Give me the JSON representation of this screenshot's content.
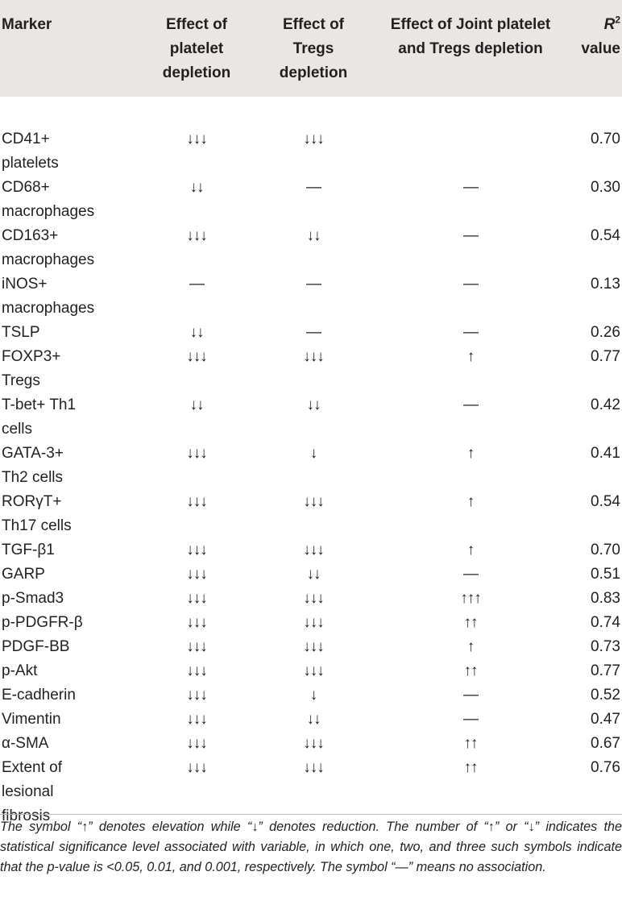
{
  "headers": {
    "marker": "Marker",
    "platelet": [
      "Effect of",
      "platelet",
      "depletion"
    ],
    "tregs": [
      "Effect of",
      "Tregs",
      "depletion"
    ],
    "joint": [
      "Effect of Joint platelet",
      "and Tregs depletion"
    ],
    "r2_main": "R",
    "r2_sup": "2",
    "r2_value": "value"
  },
  "rows": [
    {
      "marker": [
        "CD41+",
        "platelets"
      ],
      "platelet": "↓↓↓",
      "tregs": "↓↓↓",
      "joint": "",
      "r2": "0.70"
    },
    {
      "marker": [
        "CD68+",
        "macrophages"
      ],
      "platelet": "↓↓",
      "tregs": "—",
      "joint": "—",
      "r2": "0.30"
    },
    {
      "marker": [
        "CD163+",
        "macrophages"
      ],
      "platelet": "↓↓↓",
      "tregs": "↓↓",
      "joint": "—",
      "r2": "0.54"
    },
    {
      "marker": [
        "iNOS+",
        "macrophages"
      ],
      "platelet": "—",
      "tregs": "—",
      "joint": "—",
      "r2": "0.13"
    },
    {
      "marker": [
        "TSLP"
      ],
      "platelet": "↓↓",
      "tregs": "—",
      "joint": "—",
      "r2": "0.26"
    },
    {
      "marker": [
        "FOXP3+",
        "Tregs"
      ],
      "platelet": "↓↓↓",
      "tregs": "↓↓↓",
      "joint": "↑",
      "r2": "0.77"
    },
    {
      "marker": [
        "T-bet+ Th1",
        "cells"
      ],
      "platelet": "↓↓",
      "tregs": "↓↓",
      "joint": "—",
      "r2": "0.42"
    },
    {
      "marker": [
        "GATA-3+",
        "Th2 cells"
      ],
      "platelet": "↓↓↓",
      "tregs": "↓",
      "joint": "↑",
      "r2": "0.41"
    },
    {
      "marker": [
        "RORγT+",
        "Th17 cells"
      ],
      "platelet": "↓↓↓",
      "tregs": "↓↓↓",
      "joint": "↑",
      "r2": "0.54"
    },
    {
      "marker": [
        "TGF-β1"
      ],
      "platelet": "↓↓↓",
      "tregs": "↓↓↓",
      "joint": "↑",
      "r2": "0.70"
    },
    {
      "marker": [
        "GARP"
      ],
      "platelet": "↓↓↓",
      "tregs": "↓↓",
      "joint": "—",
      "r2": "0.51"
    },
    {
      "marker": [
        "p-Smad3"
      ],
      "platelet": "↓↓↓",
      "tregs": "↓↓↓",
      "joint": "↑↑↑",
      "r2": "0.83"
    },
    {
      "marker": [
        "p-PDGFR-β"
      ],
      "platelet": "↓↓↓",
      "tregs": "↓↓↓",
      "joint": "↑↑",
      "r2": "0.74"
    },
    {
      "marker": [
        "PDGF-BB"
      ],
      "platelet": "↓↓↓",
      "tregs": "↓↓↓",
      "joint": "↑",
      "r2": "0.73"
    },
    {
      "marker": [
        "p-Akt"
      ],
      "platelet": "↓↓↓",
      "tregs": "↓↓↓",
      "joint": "↑↑",
      "r2": "0.77"
    },
    {
      "marker": [
        "E-cadherin"
      ],
      "platelet": "↓↓↓",
      "tregs": "↓",
      "joint": "—",
      "r2": "0.52"
    },
    {
      "marker": [
        "Vimentin"
      ],
      "platelet": "↓↓↓",
      "tregs": "↓↓",
      "joint": "—",
      "r2": "0.47"
    },
    {
      "marker": [
        "α-SMA"
      ],
      "platelet": "↓↓↓",
      "tregs": "↓↓↓",
      "joint": "↑↑",
      "r2": "0.67"
    },
    {
      "marker": [
        "Extent of",
        "lesional",
        "fibrosis"
      ],
      "platelet": "↓↓↓",
      "tregs": "↓↓↓",
      "joint": "↑↑",
      "r2": "0.76"
    }
  ],
  "footnote": "The symbol “↑” denotes elevation while “↓” denotes reduction. The number of “↑” or “↓” indicates the statistical significance level associated with variable, in which one, two, and three such symbols indicate that the p-value is <0.05, 0.01, and 0.001, respectively. The symbol “—” means no association."
}
